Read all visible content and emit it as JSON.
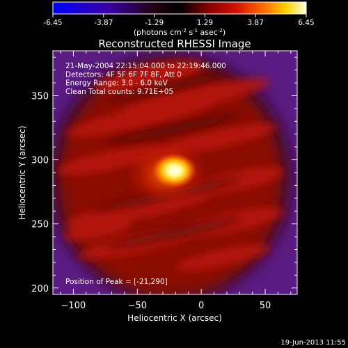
{
  "colorbar": {
    "ticks": [
      "-6.45",
      "-3.87",
      "-1.29",
      "1.29",
      "3.87",
      "6.45"
    ],
    "label_main": "(photons cm",
    "label_exp1": "-2",
    "label_mid": " s",
    "label_exp2": "-1",
    "label_end": " asec",
    "label_exp3": "-2",
    "label_close": ")"
  },
  "footer": {
    "timestamp": "19-Jun-2013 11:55"
  },
  "colors": {
    "background": "#000000",
    "text": "#ffffff"
  },
  "chart_data": {
    "type": "heatmap",
    "title": "Reconstructed RHESSI Image",
    "xlabel": "Heliocentric X (arcsec)",
    "ylabel": "Heliocentric Y (arcsec)",
    "xlim": [
      -116,
      75
    ],
    "ylim": [
      195,
      385
    ],
    "x_ticks": [
      -100,
      -50,
      0,
      50
    ],
    "y_ticks": [
      200,
      250,
      300,
      350
    ],
    "x_tick_labels": [
      "−100",
      "−50",
      "0",
      "50"
    ],
    "y_tick_labels": [
      "200",
      "250",
      "300",
      "350"
    ],
    "colorscale": {
      "min": -6.45,
      "max": 6.45,
      "name": "hot (blue-black-red-yellow-white)"
    },
    "peak": {
      "x": -21,
      "y": 290,
      "value": 6.45
    },
    "annotations": [
      "21-May-2004 22:15:04.000 to 22:19:46.000",
      "Detectors: 4F 5F 6F 7F 8F, Att 0",
      "Energy Range: 3.0 - 6.0 keV",
      "Clean     Total counts: 9.71E+05"
    ],
    "peak_label": "Position of Peak = [-21,290]"
  }
}
